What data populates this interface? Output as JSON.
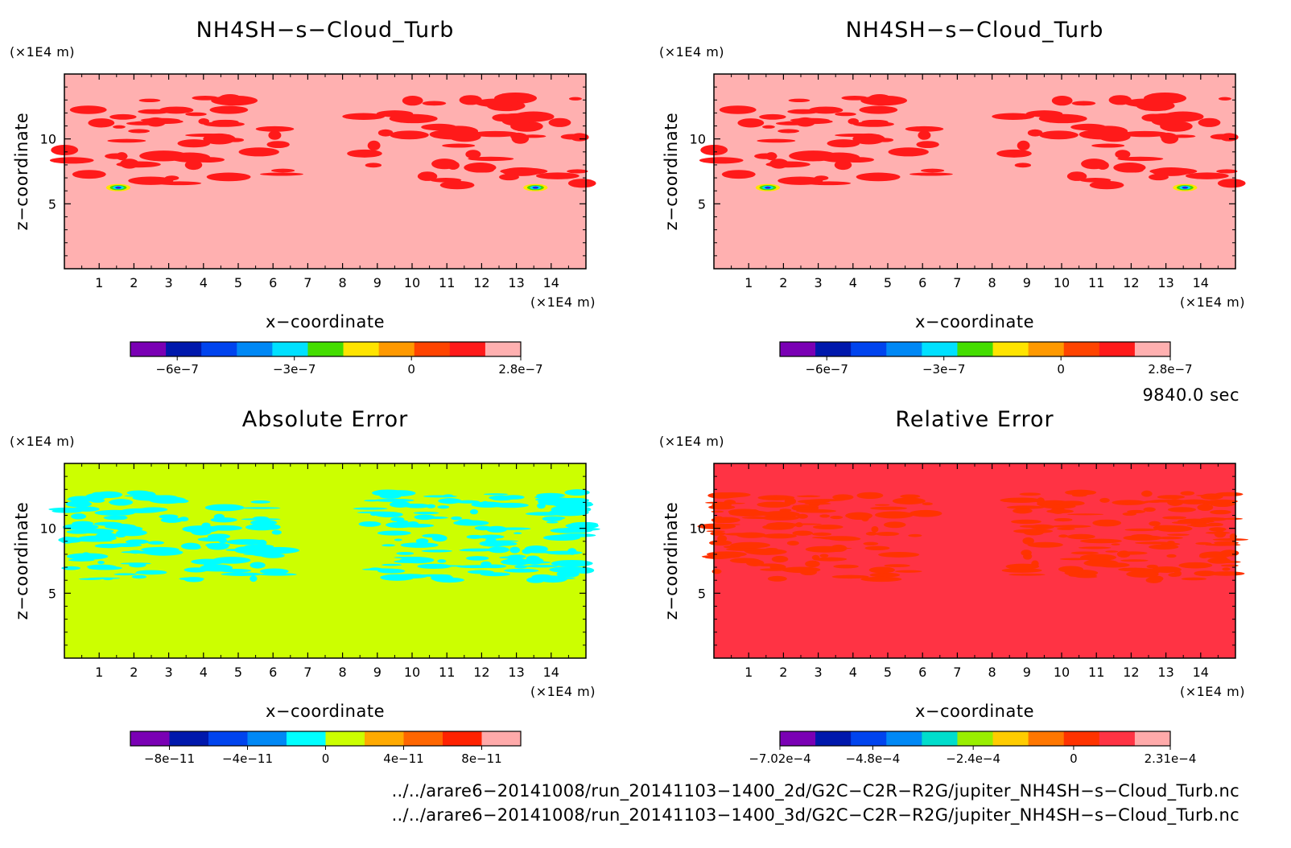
{
  "chart_data": [
    {
      "type": "heatmap",
      "title": "NH4SH−s−Cloud_Turb",
      "xlabel": "x−coordinate",
      "ylabel": "z−coordinate",
      "x_unit": "(×1E4 m)",
      "z_unit": "(×1E4 m)",
      "xlim": [
        0,
        15
      ],
      "ylim": [
        0,
        15
      ],
      "x_ticks": [
        "1",
        "2",
        "3",
        "4",
        "5",
        "6",
        "7",
        "8",
        "9",
        "10",
        "11",
        "12",
        "13",
        "14"
      ],
      "y_ticks": [
        "5",
        "10"
      ],
      "pattern": "cloud",
      "background_level": 10,
      "feature_level": 9,
      "colorbar": {
        "colors": [
          "#7a00b4",
          "#0018ac",
          "#0044ee",
          "#0088f5",
          "#00e0ff",
          "#44dd00",
          "#ffe400",
          "#ff9900",
          "#ff4400",
          "#ff1a1a",
          "#ffb0b0"
        ],
        "tick_labels": [
          "−6e−7",
          "−3e−7",
          "0",
          "2.8e−7"
        ],
        "tick_values": [
          -6e-07,
          -3e-07,
          0,
          2.8e-07
        ],
        "vmin": -7.2e-07,
        "vmax": 2.8e-07
      }
    },
    {
      "type": "heatmap",
      "title": "NH4SH−s−Cloud_Turb",
      "xlabel": "x−coordinate",
      "ylabel": "z−coordinate",
      "x_unit": "(×1E4 m)",
      "z_unit": "(×1E4 m)",
      "xlim": [
        0,
        15
      ],
      "ylim": [
        0,
        15
      ],
      "x_ticks": [
        "1",
        "2",
        "3",
        "4",
        "5",
        "6",
        "7",
        "8",
        "9",
        "10",
        "11",
        "12",
        "13",
        "14"
      ],
      "y_ticks": [
        "5",
        "10"
      ],
      "pattern": "cloud",
      "background_level": 10,
      "feature_level": 9,
      "colorbar": {
        "colors": [
          "#7a00b4",
          "#0018ac",
          "#0044ee",
          "#0088f5",
          "#00e0ff",
          "#44dd00",
          "#ffe400",
          "#ff9900",
          "#ff4400",
          "#ff1a1a",
          "#ffb0b0"
        ],
        "tick_labels": [
          "−6e−7",
          "−3e−7",
          "0",
          "2.8e−7"
        ],
        "tick_values": [
          -6e-07,
          -3e-07,
          0,
          2.8e-07
        ],
        "vmin": -7.2e-07,
        "vmax": 2.8e-07
      }
    },
    {
      "type": "heatmap",
      "title": "Absolute Error",
      "xlabel": "x−coordinate",
      "ylabel": "z−coordinate",
      "x_unit": "(×1E4 m)",
      "z_unit": "(×1E4 m)",
      "xlim": [
        0,
        15
      ],
      "ylim": [
        0,
        15
      ],
      "x_ticks": [
        "1",
        "2",
        "3",
        "4",
        "5",
        "6",
        "7",
        "8",
        "9",
        "10",
        "11",
        "12",
        "13",
        "14"
      ],
      "y_ticks": [
        "5",
        "10"
      ],
      "pattern": "noise",
      "background_level": 5,
      "feature_level": 4,
      "colorbar": {
        "colors": [
          "#7a00b4",
          "#0018ac",
          "#0044ee",
          "#0088f5",
          "#00ffff",
          "#ccff00",
          "#ffaa00",
          "#ff6600",
          "#ff2200",
          "#ffaaaa"
        ],
        "tick_labels": [
          "−8e−11",
          "−4e−11",
          "0",
          "4e−11",
          "8e−11"
        ],
        "tick_values": [
          -8e-11,
          -4e-11,
          0,
          4e-11,
          8e-11
        ],
        "vmin": -1e-10,
        "vmax": 1e-10
      }
    },
    {
      "type": "heatmap",
      "title": "Relative Error",
      "xlabel": "x−coordinate",
      "ylabel": "z−coordinate",
      "x_unit": "(×1E4 m)",
      "z_unit": "(×1E4 m)",
      "xlim": [
        0,
        15
      ],
      "ylim": [
        0,
        15
      ],
      "x_ticks": [
        "1",
        "2",
        "3",
        "4",
        "5",
        "6",
        "7",
        "8",
        "9",
        "10",
        "11",
        "12",
        "13",
        "14"
      ],
      "y_ticks": [
        "5",
        "10"
      ],
      "pattern": "noise",
      "background_level": 9,
      "feature_level": 8,
      "colorbar": {
        "colors": [
          "#7a00b4",
          "#0018ac",
          "#0044ee",
          "#0088f5",
          "#00ddcc",
          "#99ee00",
          "#ffcc00",
          "#ff7700",
          "#ff3300",
          "#ff3344",
          "#ffaaaa"
        ],
        "tick_labels": [
          "−7.02e−4",
          "−4.8e−4",
          "−2.4e−4",
          "0",
          "2.31e−4"
        ],
        "tick_values": [
          -0.000702,
          -0.00048,
          -0.00024,
          0,
          0.000231
        ],
        "vmin": -0.000702,
        "vmax": 0.000231
      }
    }
  ],
  "time_label": "9840.0 sec",
  "file_paths": [
    "../../arare6−20141008/run_20141103−1400_2d/G2C−C2R−R2G/jupiter_NH4SH−s−Cloud_Turb.nc",
    "../../arare6−20141008/run_20141103−1400_3d/G2C−C2R−R2G/jupiter_NH4SH−s−Cloud_Turb.nc"
  ]
}
